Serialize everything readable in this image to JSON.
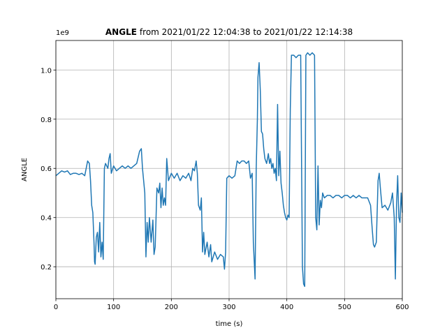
{
  "chart_data": {
    "type": "line",
    "title": {
      "bold": "ANGLE",
      "text": "from 2021/01/22 12:04:38 to 2021/01/22 12:14:38"
    },
    "x_label": "time (s)",
    "y_label": "ANGLE",
    "y_offset_label": "1e9",
    "xlim": [
      0,
      600
    ],
    "ylim": [
      0.07,
      1.12
    ],
    "xticks": [
      0,
      100,
      200,
      300,
      400,
      500,
      600
    ],
    "yticks": [
      0.2,
      0.4,
      0.6,
      0.8,
      {
        "value": 1,
        "label": "1.0"
      }
    ],
    "grid": true,
    "x": [
      0,
      5,
      10,
      15,
      20,
      25,
      30,
      35,
      40,
      45,
      50,
      55,
      58,
      60,
      62,
      64,
      66,
      67,
      68,
      70,
      72,
      74,
      76,
      78,
      80,
      82,
      84,
      86,
      88,
      90,
      92,
      94,
      96,
      100,
      105,
      110,
      115,
      120,
      125,
      130,
      135,
      140,
      145,
      148,
      150,
      152,
      154,
      156,
      158,
      160,
      162,
      165,
      168,
      170,
      172,
      175,
      178,
      180,
      182,
      184,
      186,
      188,
      190,
      192,
      195,
      200,
      205,
      210,
      215,
      220,
      225,
      230,
      234,
      237,
      240,
      243,
      245,
      247,
      250,
      252,
      254,
      256,
      258,
      262,
      265,
      268,
      270,
      275,
      280,
      285,
      290,
      292,
      294,
      296,
      300,
      305,
      310,
      314,
      318,
      322,
      326,
      330,
      334,
      337,
      340,
      342,
      344,
      345,
      347,
      349,
      350,
      352,
      354,
      356,
      358,
      360,
      362,
      365,
      368,
      370,
      372,
      374,
      376,
      378,
      380,
      382,
      384,
      386,
      388,
      390,
      392,
      394,
      396,
      398,
      400,
      402,
      404,
      406,
      408,
      412,
      416,
      420,
      424,
      427,
      429,
      431,
      433,
      436,
      440,
      444,
      448,
      450,
      452,
      454,
      456,
      458,
      460,
      462,
      465,
      470,
      475,
      480,
      485,
      490,
      495,
      500,
      505,
      510,
      515,
      520,
      525,
      530,
      540,
      545,
      548,
      550,
      552,
      555,
      558,
      560,
      562,
      565,
      570,
      575,
      580,
      583,
      586,
      588,
      590,
      592,
      594,
      596,
      598,
      600
    ],
    "series": [
      {
        "name": "ANGLE",
        "color": "#1f77b4",
        "values": [
          0.57,
          0.58,
          0.59,
          0.585,
          0.59,
          0.575,
          0.58,
          0.58,
          0.575,
          0.58,
          0.57,
          0.63,
          0.62,
          0.55,
          0.45,
          0.42,
          0.3,
          0.22,
          0.21,
          0.32,
          0.34,
          0.26,
          0.38,
          0.24,
          0.3,
          0.23,
          0.6,
          0.62,
          0.61,
          0.6,
          0.64,
          0.66,
          0.58,
          0.61,
          0.59,
          0.6,
          0.61,
          0.6,
          0.61,
          0.6,
          0.61,
          0.62,
          0.67,
          0.68,
          0.6,
          0.55,
          0.5,
          0.24,
          0.38,
          0.3,
          0.4,
          0.3,
          0.39,
          0.25,
          0.28,
          0.52,
          0.5,
          0.54,
          0.44,
          0.52,
          0.45,
          0.48,
          0.45,
          0.64,
          0.55,
          0.58,
          0.56,
          0.58,
          0.55,
          0.57,
          0.56,
          0.58,
          0.55,
          0.6,
          0.59,
          0.63,
          0.58,
          0.45,
          0.43,
          0.48,
          0.26,
          0.34,
          0.25,
          0.3,
          0.24,
          0.29,
          0.22,
          0.26,
          0.23,
          0.25,
          0.24,
          0.19,
          0.26,
          0.56,
          0.57,
          0.56,
          0.57,
          0.63,
          0.62,
          0.63,
          0.63,
          0.62,
          0.63,
          0.56,
          0.58,
          0.3,
          0.2,
          0.15,
          0.6,
          0.8,
          0.97,
          1.03,
          0.92,
          0.75,
          0.74,
          0.68,
          0.64,
          0.62,
          0.66,
          0.62,
          0.64,
          0.6,
          0.62,
          0.58,
          0.6,
          0.55,
          0.86,
          0.57,
          0.67,
          0.54,
          0.5,
          0.45,
          0.42,
          0.4,
          0.39,
          0.41,
          0.4,
          0.84,
          1.06,
          1.06,
          1.05,
          1.06,
          1.06,
          0.2,
          0.13,
          0.12,
          1.06,
          1.07,
          1.06,
          1.07,
          1.06,
          0.4,
          0.35,
          0.61,
          0.37,
          0.47,
          0.44,
          0.5,
          0.48,
          0.49,
          0.49,
          0.48,
          0.49,
          0.49,
          0.48,
          0.49,
          0.49,
          0.48,
          0.49,
          0.48,
          0.49,
          0.48,
          0.48,
          0.45,
          0.35,
          0.29,
          0.28,
          0.3,
          0.55,
          0.58,
          0.52,
          0.44,
          0.45,
          0.43,
          0.46,
          0.5,
          0.4,
          0.15,
          0.45,
          0.57,
          0.4,
          0.38,
          0.5,
          0.42
        ]
      }
    ]
  }
}
